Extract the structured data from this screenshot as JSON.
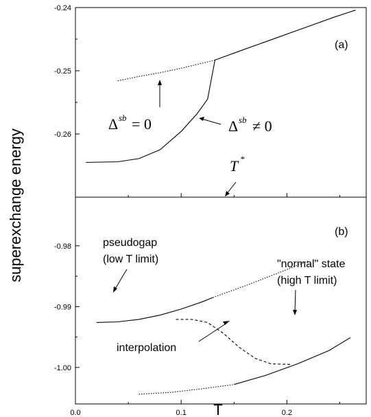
{
  "chart_data": [
    {
      "panel": "(a)",
      "type": "line",
      "x_range": [
        0.0,
        0.275
      ],
      "ylim": [
        -0.27,
        -0.24
      ],
      "y_ticks": [
        "-0.24",
        "-0.25",
        "-0.26"
      ],
      "series": [
        {
          "style": "solid",
          "x": [
            0.01,
            0.04,
            0.06,
            0.08,
            0.1,
            0.115,
            0.125,
            0.132
          ],
          "y": [
            -0.2645,
            -0.2644,
            -0.2639,
            -0.2625,
            -0.2596,
            -0.2568,
            -0.2545,
            -0.2483
          ]
        },
        {
          "style": "dotted",
          "x": [
            0.04,
            0.06,
            0.08,
            0.1,
            0.12,
            0.132
          ],
          "y": [
            -0.2516,
            -0.2509,
            -0.2503,
            -0.2496,
            -0.2488,
            -0.2483
          ]
        },
        {
          "style": "solid",
          "x": [
            0.132,
            0.16,
            0.19,
            0.22,
            0.245,
            0.265
          ],
          "y": [
            -0.2483,
            -0.2466,
            -0.2448,
            -0.243,
            -0.2415,
            -0.2404
          ]
        }
      ],
      "annotations": {
        "label": "(a)",
        "delta_zero": {
          "sym": "Δ",
          "sup": "sb",
          "rel": "= 0"
        },
        "delta_nonzero": {
          "sym": "Δ",
          "sup": "sb",
          "rel": "≠ 0"
        },
        "tstar": {
          "sym": "T",
          "sup": "*"
        }
      }
    },
    {
      "panel": "(b)",
      "type": "line",
      "x_range": [
        0.0,
        0.275
      ],
      "ylim": [
        -1.006,
        -0.972
      ],
      "y_ticks": [
        "-0.98",
        "-0.99",
        "-1.00"
      ],
      "x_ticks": [
        "0.0",
        "0.1",
        "0.2"
      ],
      "series": [
        {
          "style": "solid",
          "x": [
            0.02,
            0.04,
            0.06,
            0.08,
            0.1,
            0.12,
            0.13
          ],
          "y": [
            -0.9926,
            -0.9925,
            -0.9921,
            -0.9914,
            -0.9904,
            -0.9892,
            -0.9885
          ]
        },
        {
          "style": "dotted",
          "x": [
            0.13,
            0.16,
            0.19,
            0.22
          ],
          "y": [
            -0.9885,
            -0.9866,
            -0.9846,
            -0.9825
          ]
        },
        {
          "style": "dotted",
          "x": [
            0.06,
            0.09,
            0.12,
            0.15
          ],
          "y": [
            -1.0044,
            -1.0041,
            -1.0035,
            -1.0028
          ]
        },
        {
          "style": "solid",
          "x": [
            0.15,
            0.18,
            0.21,
            0.24,
            0.26
          ],
          "y": [
            -1.0028,
            -1.0013,
            -0.9994,
            -0.9972,
            -0.9951
          ]
        },
        {
          "style": "dashed",
          "x": [
            0.095,
            0.11,
            0.125,
            0.14,
            0.155,
            0.17,
            0.185,
            0.205
          ],
          "y": [
            -0.9921,
            -0.9921,
            -0.9926,
            -0.9944,
            -0.9967,
            -0.9985,
            -0.9994,
            -0.9995
          ]
        }
      ],
      "annotations": {
        "label": "(b)",
        "pseudogap": [
          "pseudogap",
          "(low T limit)"
        ],
        "normal": [
          "\"normal\" state",
          "(high T limit)"
        ],
        "interpolation": "interpolation"
      }
    }
  ],
  "xlabel": "T",
  "ylabel": "superexchange energy"
}
